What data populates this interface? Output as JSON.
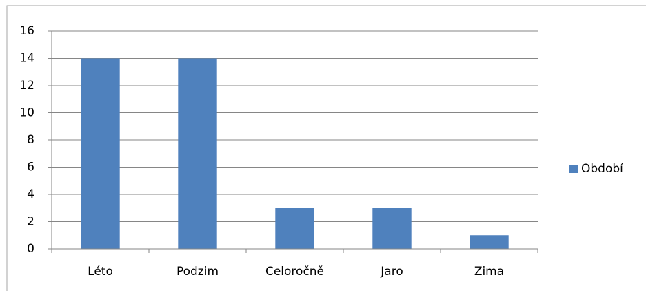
{
  "chart_data": {
    "type": "bar",
    "categories": [
      "Léto",
      "Podzim",
      "Celoročně",
      "Jaro",
      "Zima"
    ],
    "series": [
      {
        "name": "Období",
        "color": "#4f81bd",
        "values": [
          14,
          14,
          3,
          3,
          1
        ]
      }
    ],
    "ylim": [
      0,
      16
    ],
    "yticks": [
      0,
      2,
      4,
      6,
      8,
      10,
      12,
      14,
      16
    ],
    "grid": true,
    "legend": "right"
  }
}
